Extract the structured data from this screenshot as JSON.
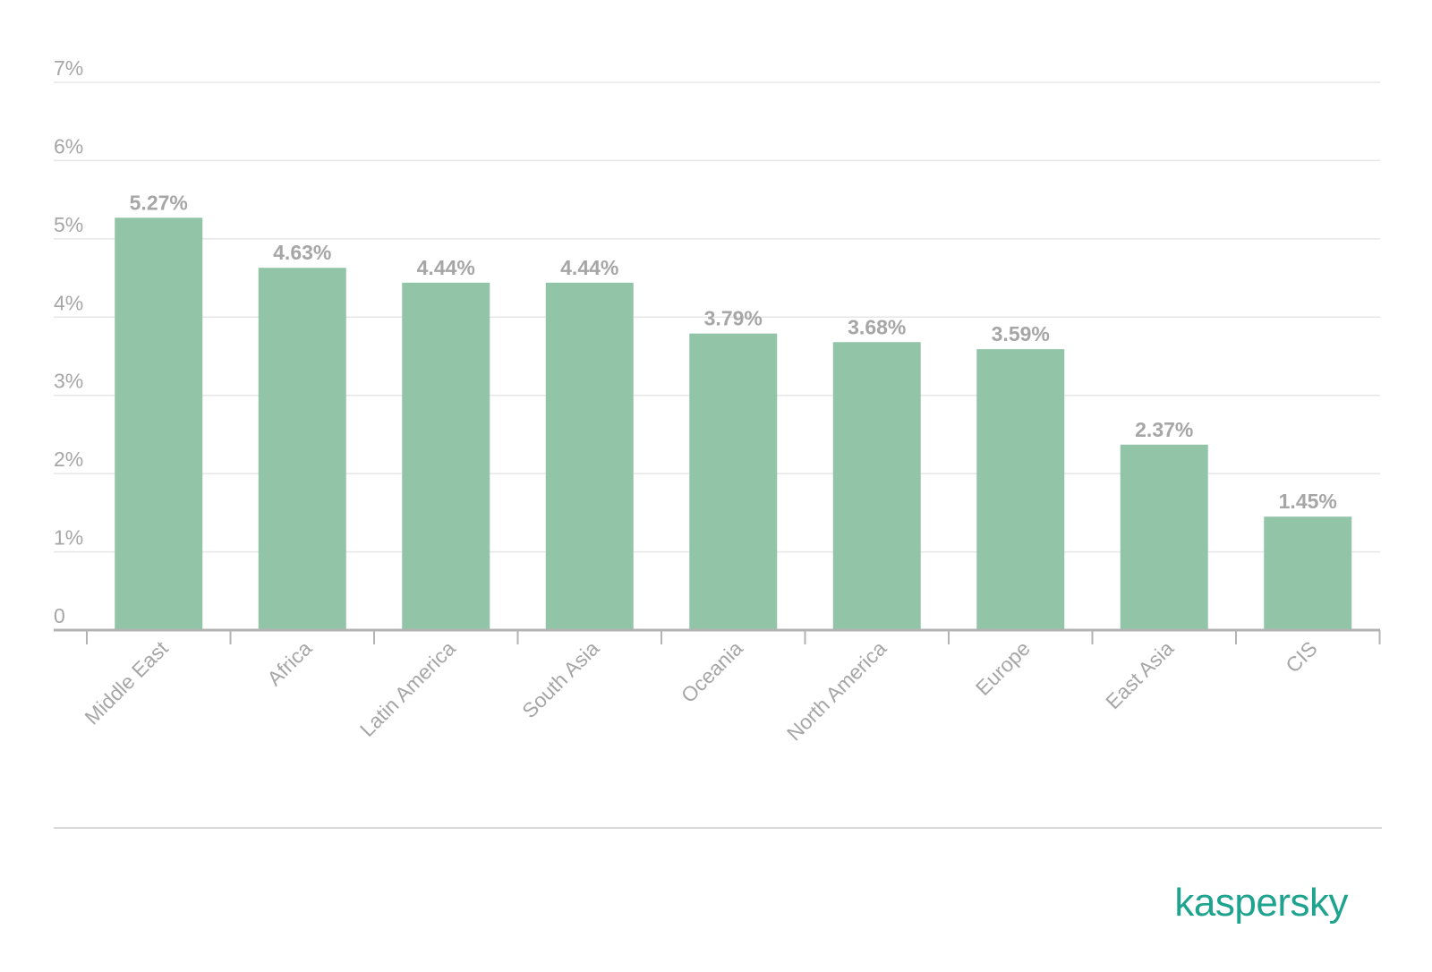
{
  "chart_data": {
    "type": "bar",
    "title": "",
    "xlabel": "",
    "ylabel": "",
    "ylim": [
      0,
      7
    ],
    "yticks": [
      "0",
      "1%",
      "2%",
      "3%",
      "4%",
      "5%",
      "6%",
      "7%"
    ],
    "categories": [
      "Middle East",
      "Africa",
      "Latin America",
      "South Asia",
      "Oceania",
      "North America",
      "Europe",
      "East Asia",
      "CIS"
    ],
    "values": [
      5.27,
      4.63,
      4.44,
      4.44,
      3.79,
      3.68,
      3.59,
      2.37,
      1.45
    ],
    "value_labels": [
      "5.27%",
      "4.63%",
      "4.44%",
      "4.44%",
      "3.79%",
      "3.68%",
      "3.59%",
      "2.37%",
      "1.45%"
    ],
    "grid": true,
    "bar_color": "#92c4a8",
    "text_color": "#a6a6a6",
    "grid_color": "#e6e6e6",
    "axis_color": "#b3b3b3"
  },
  "brand": {
    "logo_text": "kaspersky",
    "logo_color": "#1ea38f"
  }
}
